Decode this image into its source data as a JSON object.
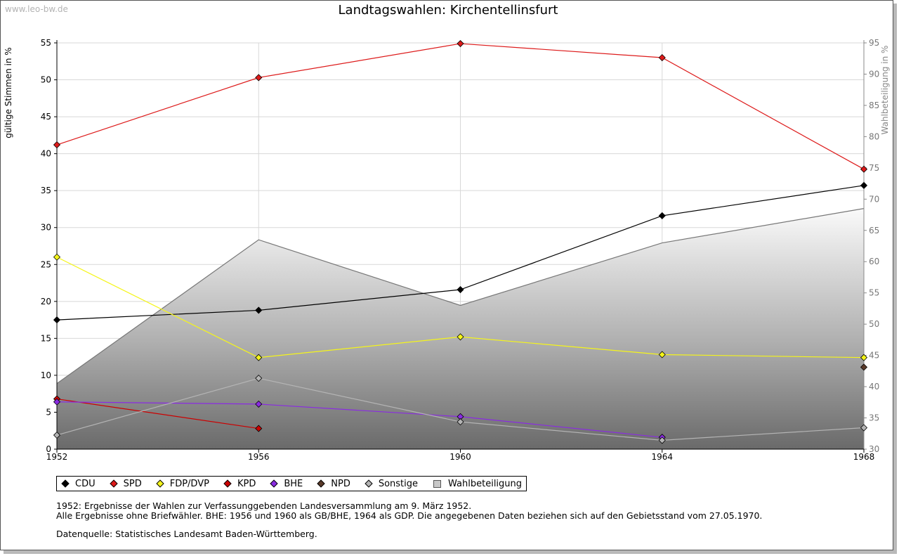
{
  "watermark": "www.leo-bw.de",
  "chart_data": {
    "type": "line",
    "title": "Landtagswahlen: Kirchentellinsfurt",
    "ylabel": "gültige Stimmen in %",
    "y2label": "Wahlbeteiligung in %",
    "x": [
      1952,
      1956,
      1960,
      1964,
      1968
    ],
    "ylim": [
      0,
      55
    ],
    "y2lim": [
      30,
      95
    ],
    "yticks": [
      0,
      5,
      10,
      15,
      20,
      25,
      30,
      35,
      40,
      45,
      50,
      55
    ],
    "y2ticks": [
      30,
      35,
      40,
      45,
      50,
      55,
      60,
      65,
      70,
      75,
      80,
      85,
      90,
      95
    ],
    "series": [
      {
        "name": "CDU",
        "color": "#000000",
        "values": [
          17.5,
          18.8,
          21.6,
          31.6,
          35.7
        ]
      },
      {
        "name": "SPD",
        "color": "#dd1a1a",
        "values": [
          41.2,
          50.3,
          54.9,
          53.0,
          37.9
        ]
      },
      {
        "name": "FDP/DVP",
        "color": "#f5f51a",
        "values": [
          26.0,
          12.4,
          15.2,
          12.8,
          12.4
        ]
      },
      {
        "name": "KPD",
        "color": "#cc0000",
        "values": [
          6.8,
          2.8,
          null,
          null,
          null
        ]
      },
      {
        "name": "BHE",
        "color": "#8a2be2",
        "values": [
          6.4,
          6.1,
          4.4,
          1.6,
          null
        ]
      },
      {
        "name": "NPD",
        "color": "#5a3a2a",
        "values": [
          null,
          null,
          null,
          null,
          11.1
        ]
      },
      {
        "name": "Sonstige",
        "color": "#b4b4b4",
        "values": [
          1.9,
          9.6,
          3.7,
          1.2,
          2.9
        ]
      }
    ],
    "turnout": {
      "name": "Wahlbeteiligung",
      "axis": "right",
      "values": [
        40.5,
        63.5,
        53.0,
        63.0,
        68.5
      ]
    }
  },
  "legend": {
    "items": [
      {
        "label": "CDU",
        "color": "#000000",
        "marker": "diamond"
      },
      {
        "label": "SPD",
        "color": "#dd1a1a",
        "marker": "diamond"
      },
      {
        "label": "FDP/DVP",
        "color": "#f5f51a",
        "marker": "diamond"
      },
      {
        "label": "KPD",
        "color": "#cc0000",
        "marker": "diamond"
      },
      {
        "label": "BHE",
        "color": "#8a2be2",
        "marker": "diamond"
      },
      {
        "label": "NPD",
        "color": "#5a3a2a",
        "marker": "diamond"
      },
      {
        "label": "Sonstige",
        "color": "#b4b4b4",
        "marker": "diamond"
      },
      {
        "label": "Wahlbeteiligung",
        "color": "#c8c8c8",
        "marker": "square"
      }
    ]
  },
  "notes": {
    "line1": "1952: Ergebnisse der Wahlen zur Verfassunggebenden Landesversammlung am 9. März 1952.",
    "line2": "Alle Ergebnisse ohne Briefwähler. BHE: 1956 und 1960 als GB/BHE, 1964 als GDP. Die angegebenen Daten beziehen sich auf den Gebietsstand vom 27.05.1970.",
    "source": "Datenquelle: Statistisches Landesamt Baden-Württemberg."
  }
}
